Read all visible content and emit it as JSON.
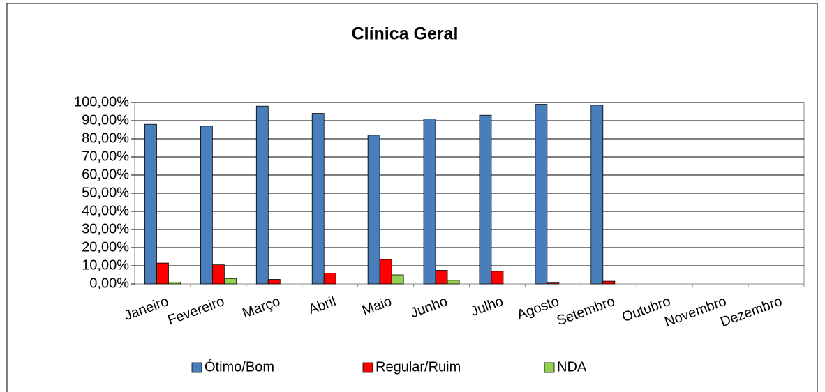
{
  "chart_data": {
    "type": "bar",
    "title": "Clínica Geral",
    "categories": [
      "Janeiro",
      "Fevereiro",
      "Março",
      "Abril",
      "Maio",
      "Junho",
      "Julho",
      "Agosto",
      "Setembro",
      "Outubro",
      "Novembro",
      "Dezembro"
    ],
    "series": [
      {
        "name": "Ótimo/Bom",
        "color": "#4a7ebb",
        "values": [
          88,
          87,
          98,
          94,
          82,
          91,
          93,
          99,
          98.5,
          null,
          null,
          null
        ]
      },
      {
        "name": "Regular/Ruim",
        "color": "#ff0000",
        "values": [
          11.5,
          10.5,
          2.5,
          6,
          13.5,
          7.5,
          7,
          0.5,
          1.5,
          null,
          null,
          null
        ]
      },
      {
        "name": "NDA",
        "color": "#92d050",
        "values": [
          1,
          3,
          0,
          0,
          5,
          2,
          0,
          0,
          0,
          null,
          null,
          null
        ]
      }
    ],
    "ylim": [
      0,
      100
    ],
    "yticks": [
      {
        "value": 0,
        "label": "0,00%"
      },
      {
        "value": 10,
        "label": "10,00%"
      },
      {
        "value": 20,
        "label": "20,00%"
      },
      {
        "value": 30,
        "label": "30,00%"
      },
      {
        "value": 40,
        "label": "40,00%"
      },
      {
        "value": 50,
        "label": "50,00%"
      },
      {
        "value": 60,
        "label": "60,00%"
      },
      {
        "value": 70,
        "label": "70,00%"
      },
      {
        "value": 80,
        "label": "80,00%"
      },
      {
        "value": 90,
        "label": "90,00%"
      },
      {
        "value": 100,
        "label": "100,00%"
      }
    ],
    "grid": true,
    "legend": "bottom"
  }
}
